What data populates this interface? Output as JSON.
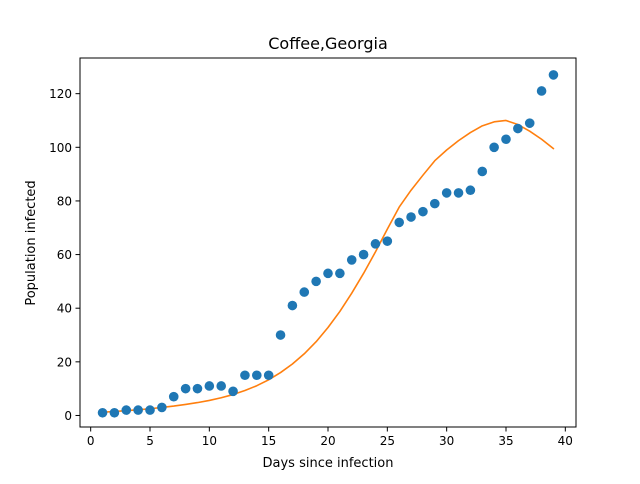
{
  "chart_data": {
    "type": "scatter",
    "title": "Coffee,Georgia",
    "xlabel": "Days since infection",
    "ylabel": "Population infected",
    "xlim": [
      -0.9,
      40.9
    ],
    "ylim": [
      -4.3,
      133.3
    ],
    "xticks": [
      0,
      5,
      10,
      15,
      20,
      25,
      30,
      35,
      40
    ],
    "yticks": [
      0,
      20,
      40,
      60,
      80,
      100,
      120
    ],
    "grid": false,
    "legend": "none",
    "series": [
      {
        "kind": "scatter",
        "color": "#1f77b4",
        "x": [
          1,
          2,
          3,
          4,
          5,
          6,
          7,
          8,
          9,
          10,
          11,
          12,
          13,
          14,
          15,
          16,
          17,
          18,
          19,
          20,
          21,
          22,
          23,
          24,
          25,
          26,
          27,
          28,
          29,
          30,
          31,
          32,
          33,
          34,
          35,
          36,
          37,
          38,
          39
        ],
        "y": [
          1,
          1,
          2,
          2,
          2,
          3,
          7,
          10,
          10,
          11,
          11,
          9,
          15,
          15,
          15,
          30,
          41,
          46,
          50,
          53,
          53,
          58,
          60,
          64,
          65,
          72,
          74,
          76,
          79,
          83,
          83,
          84,
          91,
          100,
          103,
          107,
          109,
          121,
          127
        ]
      },
      {
        "kind": "line",
        "color": "#ff7f0e",
        "x": [
          1,
          2,
          3,
          4,
          5,
          6,
          7,
          8,
          9,
          10,
          11,
          12,
          13,
          14,
          15,
          16,
          17,
          18,
          19,
          20,
          21,
          22,
          23,
          24,
          25,
          26,
          27,
          28,
          29,
          30,
          31,
          32,
          33,
          34,
          35,
          36,
          37,
          38,
          39
        ],
        "y": [
          1.2,
          1.5,
          1.8,
          2.1,
          2.5,
          3.0,
          3.5,
          4.1,
          4.8,
          5.6,
          6.6,
          7.8,
          9.3,
          11.1,
          13.3,
          16.0,
          19.2,
          23.0,
          27.5,
          32.8,
          38.8,
          45.6,
          53.0,
          61.0,
          69.5,
          77.7,
          84.0,
          89.6,
          95.0,
          99.0,
          102.5,
          105.5,
          108.0,
          109.5,
          110.0,
          108.5,
          106.0,
          103.0,
          99.5
        ]
      }
    ]
  }
}
